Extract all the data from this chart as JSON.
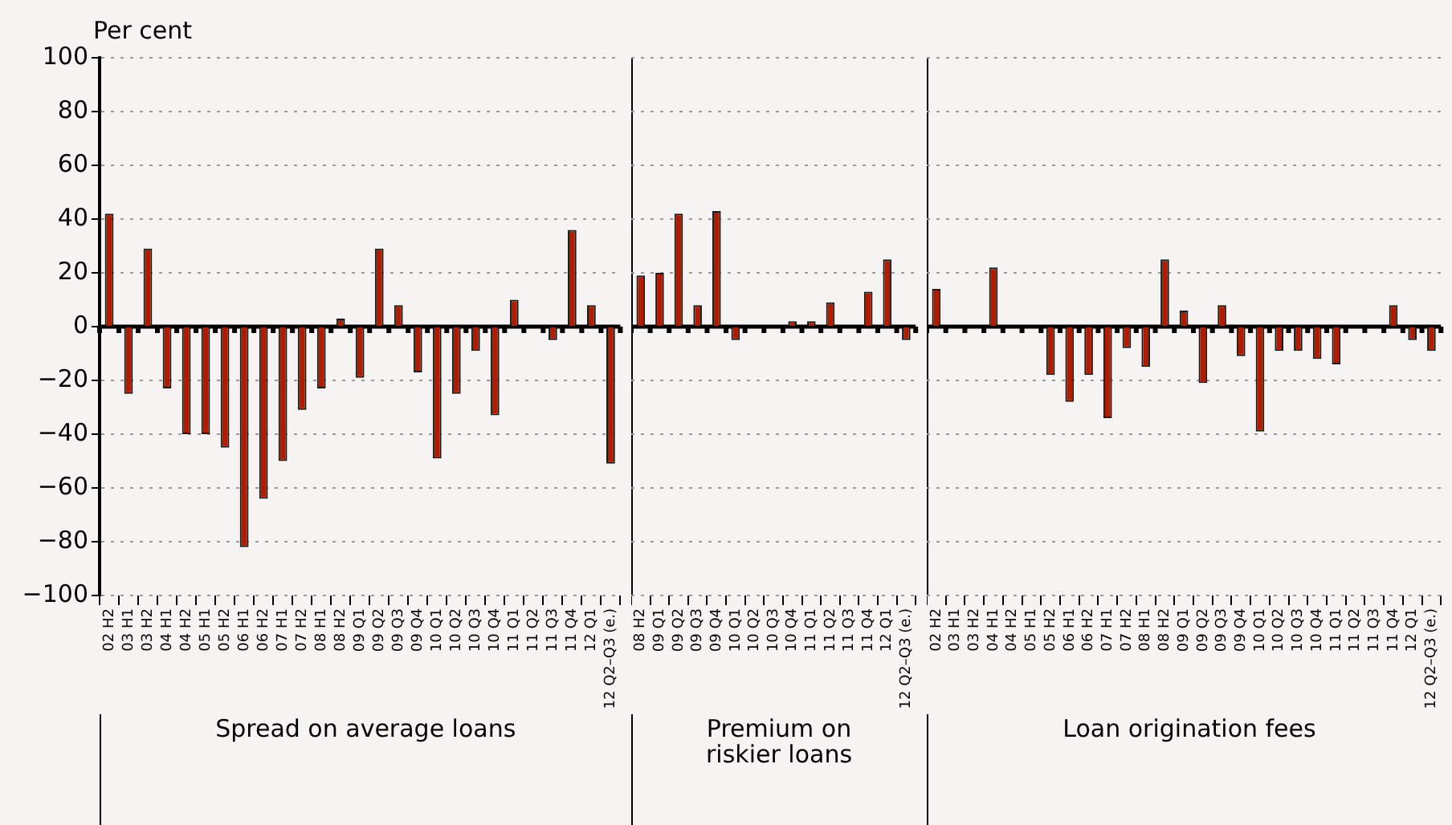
{
  "chart_data": [
    {
      "type": "bar",
      "ylabel": "Per cent",
      "xlabel": "Spread on average loans",
      "color": "#b01c00",
      "grid": "y",
      "categories": [
        "02 H2",
        "03 H1",
        "03 H2",
        "04 H1",
        "04 H2",
        "05 H1",
        "05 H2",
        "06 H1",
        "06 H2",
        "07 H1",
        "07 H2",
        "08 H1",
        "08 H2",
        "09 Q1",
        "09 Q2",
        "09 Q3",
        "09 Q4",
        "10 Q1",
        "10 Q2",
        "10 Q3",
        "10 Q4",
        "11 Q1",
        "11 Q2",
        "11 Q3",
        "11 Q4",
        "12 Q1",
        "12 Q2–Q3 (e.)"
      ],
      "values": [
        42,
        -25,
        29,
        -23,
        -40,
        -40,
        -45,
        -82,
        -64,
        -50,
        -31,
        -23,
        3,
        -19,
        29,
        8,
        -17,
        -49,
        -25,
        -9,
        -33,
        10,
        0,
        -5,
        36,
        8,
        -51
      ],
      "ylim": [
        -100,
        100
      ],
      "yticks": [
        {
          "value": -100,
          "label": "−100"
        },
        {
          "value": -80,
          "label": "−80"
        },
        {
          "value": -60,
          "label": "−60"
        },
        {
          "value": -40,
          "label": "−40"
        },
        {
          "value": -20,
          "label": "−20"
        },
        0,
        20,
        40,
        60,
        80,
        100
      ]
    },
    {
      "type": "bar",
      "xlabel": "Premium on riskier loans",
      "color": "#b01c00",
      "grid": "y",
      "tick_labels": "x",
      "categories": [
        "08 H2",
        "09 Q1",
        "09 Q2",
        "09 Q3",
        "09 Q4",
        "10 Q1",
        "10 Q2",
        "10 Q3",
        "10 Q4",
        "11 Q1",
        "11 Q2",
        "11 Q3",
        "11 Q4",
        "12 Q1",
        "12 Q2–Q3 (e.)"
      ],
      "values": [
        19,
        20,
        42,
        8,
        43,
        -5,
        0,
        0,
        2,
        2,
        9,
        0,
        13,
        25,
        -5
      ],
      "ylim": [
        -100,
        100
      ],
      "yticks": [
        -100,
        -80,
        -60,
        -40,
        -20,
        0,
        20,
        40,
        60,
        80,
        100
      ]
    },
    {
      "type": "bar",
      "xlabel": "Loan origination fees",
      "color": "#b01c00",
      "grid": "y",
      "tick_labels": "x",
      "categories": [
        "02 H2",
        "03 H1",
        "03 H2",
        "04 H1",
        "04 H2",
        "05 H1",
        "05 H2",
        "06 H1",
        "06 H2",
        "07 H1",
        "07 H2",
        "08 H1",
        "08 H2",
        "09 Q1",
        "09 Q2",
        "09 Q3",
        "09 Q4",
        "10 Q1",
        "10 Q2",
        "10 Q3",
        "10 Q4",
        "11 Q1",
        "11 Q2",
        "11 Q3",
        "11 Q4",
        "12 Q1",
        "12 Q2–Q3 (e.)"
      ],
      "values": [
        14,
        0,
        0,
        22,
        0,
        0,
        -18,
        -28,
        -18,
        -34,
        -8,
        -15,
        25,
        6,
        -21,
        8,
        -11,
        -39,
        -9,
        -9,
        -12,
        -14,
        0,
        0,
        8,
        -5,
        -9
      ],
      "ylim": [
        -100,
        100
      ],
      "yticks": [
        -100,
        -80,
        -60,
        -40,
        -20,
        0,
        20,
        40,
        60,
        80,
        100
      ]
    }
  ]
}
